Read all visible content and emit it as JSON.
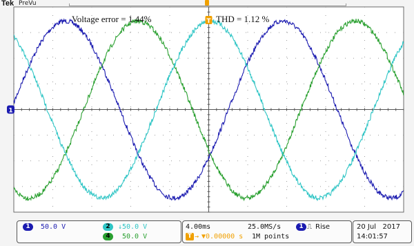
{
  "header": {
    "brand": "Tek",
    "mode": "PreVu"
  },
  "annotations": {
    "voltage_error": "Voltage error = 1.44%",
    "thd": "THD = 1.12 %"
  },
  "colors": {
    "ch1": "#1b1bb0",
    "ch2": "#2ec5c5",
    "ch4": "#2aa030",
    "grid_bg": "#ffffff",
    "trigger": "#f0a000"
  },
  "channels": [
    {
      "id": "1",
      "scale": "50.0 V",
      "color": "#1b1bb0"
    },
    {
      "id": "2",
      "scale": "↓50.0 V",
      "color": "#2ec5c5"
    },
    {
      "id": "4",
      "scale": "50.0 V",
      "color": "#2aa030"
    }
  ],
  "timebase": {
    "time_div": "4.00ms",
    "trigger_offset": "▼0.00000 s",
    "sample_rate": "25.0MS/s",
    "record_length": "1M points",
    "trigger_source": "1",
    "trigger_slope": "Rise"
  },
  "datetime": {
    "date": "20 Jul   2017",
    "time": "14:01:57"
  },
  "markers": {
    "ch1_ground": "1",
    "trigger_level": "T"
  }
}
